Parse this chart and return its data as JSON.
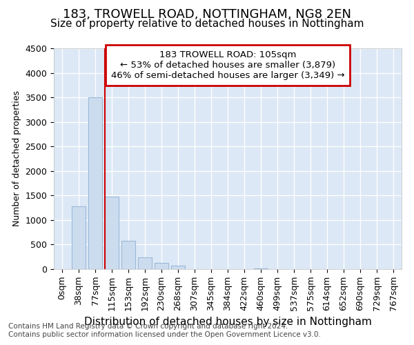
{
  "title1": "183, TROWELL ROAD, NOTTINGHAM, NG8 2EN",
  "title2": "Size of property relative to detached houses in Nottingham",
  "xlabel": "Distribution of detached houses by size in Nottingham",
  "ylabel": "Number of detached properties",
  "categories": [
    "0sqm",
    "38sqm",
    "77sqm",
    "115sqm",
    "153sqm",
    "192sqm",
    "230sqm",
    "268sqm",
    "307sqm",
    "345sqm",
    "384sqm",
    "422sqm",
    "460sqm",
    "499sqm",
    "537sqm",
    "575sqm",
    "614sqm",
    "652sqm",
    "690sqm",
    "729sqm",
    "767sqm"
  ],
  "values": [
    0,
    1280,
    3500,
    1480,
    580,
    240,
    130,
    70,
    0,
    0,
    0,
    0,
    15,
    0,
    0,
    0,
    0,
    0,
    0,
    0,
    0
  ],
  "bar_color": "#ccdcef",
  "bar_edge_color": "#9ab8d8",
  "ylim": [
    0,
    4500
  ],
  "yticks": [
    0,
    500,
    1000,
    1500,
    2000,
    2500,
    3000,
    3500,
    4000,
    4500
  ],
  "subject_line_index": 3,
  "annotation_box_text": "183 TROWELL ROAD: 105sqm\n← 53% of detached houses are smaller (3,879)\n46% of semi-detached houses are larger (3,349) →",
  "annotation_box_color": "#cc0000",
  "footnote1": "Contains HM Land Registry data © Crown copyright and database right 2024.",
  "footnote2": "Contains public sector information licensed under the Open Government Licence v3.0.",
  "title1_fontsize": 13,
  "title2_fontsize": 11,
  "xlabel_fontsize": 11,
  "ylabel_fontsize": 9,
  "tick_fontsize": 9,
  "annotation_fontsize": 9.5,
  "footnote_fontsize": 7.5,
  "background_color": "#dce8f5"
}
